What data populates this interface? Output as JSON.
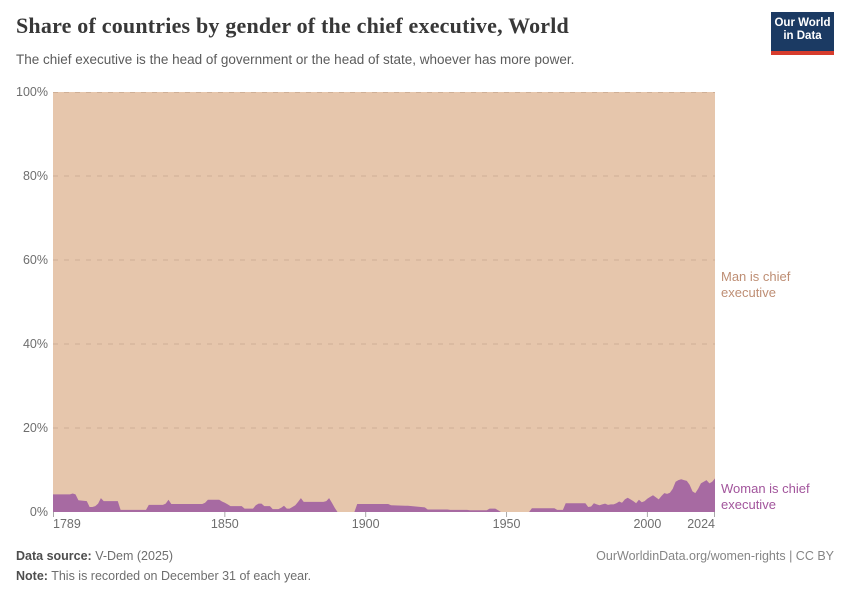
{
  "header": {
    "title": "Share of countries by gender of the chief executive, World",
    "subtitle": "The chief executive is the head of government or the head of state, whoever has more power.",
    "logo": {
      "line1": "Our World",
      "line2": "in Data",
      "bg_color": "#1b3a63",
      "bar_color": "#d73c2d"
    }
  },
  "chart_data": {
    "type": "area",
    "stacked": true,
    "title": "Share of countries by gender of the chief executive, World",
    "xlabel": "",
    "ylabel": "",
    "x_range": [
      1789,
      2024
    ],
    "y_range": [
      0,
      100
    ],
    "grid": "dashed-horizontal",
    "legend_position": "right-edge-labels",
    "y_ticks": [
      {
        "value": 0,
        "label": "0%"
      },
      {
        "value": 20,
        "label": "20%"
      },
      {
        "value": 40,
        "label": "40%"
      },
      {
        "value": 60,
        "label": "60%"
      },
      {
        "value": 80,
        "label": "80%"
      },
      {
        "value": 100,
        "label": "100%"
      }
    ],
    "x_ticks": [
      {
        "value": 1789,
        "label": "1789"
      },
      {
        "value": 1850,
        "label": "1850"
      },
      {
        "value": 1900,
        "label": "1900"
      },
      {
        "value": 1950,
        "label": "1950"
      },
      {
        "value": 2000,
        "label": "2000"
      },
      {
        "value": 2024,
        "label": "2024"
      }
    ],
    "series": [
      {
        "name": "Woman is chief executive",
        "color": "#a76aa2",
        "label_color": "#a2559c",
        "unit": "%",
        "points": [
          [
            1789,
            4.2
          ],
          [
            1795,
            4.2
          ],
          [
            1796,
            4.4
          ],
          [
            1797,
            4.2
          ],
          [
            1798,
            2.8
          ],
          [
            1801,
            2.6
          ],
          [
            1802,
            1.2
          ],
          [
            1803,
            1.2
          ],
          [
            1804,
            1.4
          ],
          [
            1805,
            2.0
          ],
          [
            1806,
            3.3
          ],
          [
            1807,
            2.6
          ],
          [
            1812,
            2.6
          ],
          [
            1813,
            0.5
          ],
          [
            1822,
            0.5
          ],
          [
            1823,
            1.7
          ],
          [
            1828,
            1.7
          ],
          [
            1829,
            2.0
          ],
          [
            1830,
            2.9
          ],
          [
            1831,
            1.9
          ],
          [
            1842,
            1.9
          ],
          [
            1843,
            2.2
          ],
          [
            1844,
            2.9
          ],
          [
            1848,
            2.9
          ],
          [
            1849,
            2.5
          ],
          [
            1850,
            2.2
          ],
          [
            1851,
            1.8
          ],
          [
            1852,
            1.4
          ],
          [
            1856,
            1.4
          ],
          [
            1857,
            0.8
          ],
          [
            1860,
            0.8
          ],
          [
            1861,
            1.6
          ],
          [
            1862,
            2.0
          ],
          [
            1863,
            2.0
          ],
          [
            1864,
            1.4
          ],
          [
            1866,
            1.4
          ],
          [
            1867,
            0.7
          ],
          [
            1869,
            0.7
          ],
          [
            1870,
            1.0
          ],
          [
            1871,
            1.5
          ],
          [
            1872,
            0.8
          ],
          [
            1873,
            0.8
          ],
          [
            1874,
            1.2
          ],
          [
            1875,
            1.6
          ],
          [
            1876,
            2.4
          ],
          [
            1877,
            3.3
          ],
          [
            1878,
            2.4
          ],
          [
            1885,
            2.4
          ],
          [
            1886,
            2.6
          ],
          [
            1887,
            3.3
          ],
          [
            1888,
            2.2
          ],
          [
            1889,
            1.0
          ],
          [
            1890,
            0
          ],
          [
            1896,
            0
          ],
          [
            1897,
            1.9
          ],
          [
            1908,
            1.9
          ],
          [
            1909,
            1.6
          ],
          [
            1914,
            1.5
          ],
          [
            1915,
            1.5
          ],
          [
            1921,
            1.1
          ],
          [
            1922,
            0.6
          ],
          [
            1929,
            0.6
          ],
          [
            1930,
            0.5
          ],
          [
            1936,
            0.5
          ],
          [
            1937,
            0.4
          ],
          [
            1943,
            0.4
          ],
          [
            1944,
            0.8
          ],
          [
            1946,
            0.8
          ],
          [
            1947,
            0.4
          ],
          [
            1948,
            0
          ],
          [
            1958,
            0
          ],
          [
            1959,
            0.9
          ],
          [
            1967,
            0.9
          ],
          [
            1968,
            0.5
          ],
          [
            1970,
            0.5
          ],
          [
            1971,
            2.1
          ],
          [
            1978,
            2.1
          ],
          [
            1979,
            1.2
          ],
          [
            1980,
            1.3
          ],
          [
            1981,
            2.1
          ],
          [
            1982,
            1.8
          ],
          [
            1983,
            1.6
          ],
          [
            1984,
            1.8
          ],
          [
            1985,
            2.0
          ],
          [
            1986,
            1.7
          ],
          [
            1987,
            1.8
          ],
          [
            1988,
            1.8
          ],
          [
            1989,
            2.1
          ],
          [
            1990,
            2.5
          ],
          [
            1991,
            2.2
          ],
          [
            1992,
            3.0
          ],
          [
            1993,
            3.4
          ],
          [
            1994,
            3.0
          ],
          [
            1995,
            2.6
          ],
          [
            1996,
            2.1
          ],
          [
            1997,
            2.9
          ],
          [
            1998,
            2.3
          ],
          [
            1999,
            2.6
          ],
          [
            2000,
            3.2
          ],
          [
            2001,
            3.6
          ],
          [
            2002,
            4.0
          ],
          [
            2003,
            3.5
          ],
          [
            2004,
            3.0
          ],
          [
            2005,
            3.8
          ],
          [
            2006,
            4.5
          ],
          [
            2007,
            4.3
          ],
          [
            2008,
            4.6
          ],
          [
            2009,
            5.5
          ],
          [
            2010,
            7.2
          ],
          [
            2011,
            7.6
          ],
          [
            2012,
            7.8
          ],
          [
            2013,
            7.6
          ],
          [
            2014,
            7.4
          ],
          [
            2015,
            6.5
          ],
          [
            2016,
            4.9
          ],
          [
            2017,
            4.5
          ],
          [
            2018,
            5.5
          ],
          [
            2019,
            6.8
          ],
          [
            2020,
            7.2
          ],
          [
            2021,
            7.6
          ],
          [
            2022,
            6.8
          ],
          [
            2023,
            7.2
          ],
          [
            2024,
            8.0
          ]
        ]
      },
      {
        "name": "Man is chief executive",
        "color": "#e6c6ac",
        "label_color": "#be8e74",
        "unit": "%",
        "derived": "complement-to-100-of-woman-series"
      }
    ]
  },
  "footer": {
    "source_label": "Data source:",
    "source_value": " V-Dem (2025)",
    "note_label": "Note:",
    "note_value": " This is recorded on December 31 of each year.",
    "credit": "OurWorldinData.org/women-rights | CC BY"
  }
}
